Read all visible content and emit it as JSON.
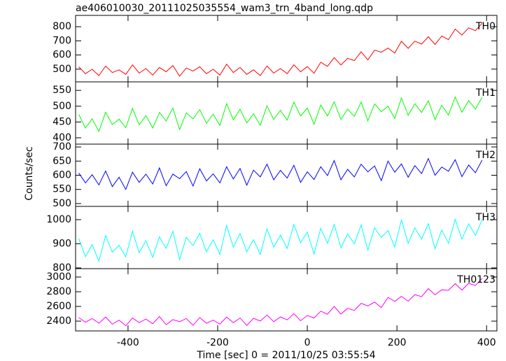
{
  "chart_data": {
    "type": "line",
    "title": "ae406010030_20111025035554_wam3_trn_4band_long.qdp",
    "xlabel": "Time [sec] 0 = 2011/10/25 03:55:54",
    "ylabel": "Counts/sec",
    "xlim": [
      -517,
      423
    ],
    "xticks": [
      -400,
      -200,
      0,
      200,
      400
    ],
    "x": [
      -510,
      -495,
      -480,
      -465,
      -450,
      -435,
      -420,
      -405,
      -390,
      -375,
      -360,
      -345,
      -330,
      -315,
      -300,
      -285,
      -270,
      -255,
      -240,
      -225,
      -210,
      -195,
      -180,
      -165,
      -150,
      -135,
      -120,
      -105,
      -90,
      -75,
      -60,
      -45,
      -30,
      -15,
      0,
      15,
      30,
      45,
      60,
      75,
      90,
      105,
      120,
      135,
      150,
      165,
      180,
      195,
      210,
      225,
      240,
      255,
      270,
      285,
      300,
      315,
      330,
      345,
      360,
      375,
      390
    ],
    "series": [
      {
        "name": "TH0",
        "color": "#ff0000",
        "ylim": [
          410,
          880
        ],
        "yticks": [
          500,
          600,
          700,
          800
        ],
        "values": [
          517,
          468,
          499,
          454,
          522,
          476,
          495,
          463,
          530,
          472,
          504,
          458,
          512,
          481,
          526,
          450,
          508,
          486,
          517,
          468,
          499,
          458,
          535,
          476,
          512,
          463,
          495,
          454,
          522,
          472,
          504,
          468,
          530,
          481,
          518,
          471,
          549,
          520,
          581,
          529,
          576,
          561,
          622,
          565,
          634,
          620,
          649,
          614,
          697,
          647,
          698,
          677,
          729,
          674,
          734,
          709,
          783,
          741,
          792,
          772,
          824
        ]
      },
      {
        "name": "TH1",
        "color": "#00ff00",
        "ylim": [
          380,
          577
        ],
        "yticks": [
          400,
          450,
          500,
          550
        ],
        "values": [
          474,
          431,
          460,
          420,
          481,
          442,
          459,
          432,
          493,
          441,
          470,
          431,
          480,
          453,
          494,
          426,
          479,
          460,
          489,
          446,
          475,
          439,
          508,
          457,
          490,
          447,
          476,
          440,
          501,
          458,
          487,
          456,
          513,
          469,
          494,
          443,
          504,
          469,
          514,
          458,
          491,
          468,
          513,
          454,
          507,
          483,
          500,
          461,
          526,
          471,
          508,
          480,
          517,
          458,
          503,
          472,
          529,
          481,
          518,
          491,
          528
        ]
      },
      {
        "name": "TH2",
        "color": "#0000ff",
        "ylim": [
          490,
          710
        ],
        "yticks": [
          500,
          550,
          600,
          650,
          700
        ],
        "values": [
          608,
          573,
          602,
          566,
          615,
          560,
          593,
          550,
          611,
          575,
          604,
          569,
          626,
          563,
          604,
          588,
          613,
          562,
          623,
          580,
          605,
          573,
          630,
          587,
          624,
          565,
          618,
          594,
          639,
          584,
          617,
          590,
          635,
          575,
          612,
          585,
          630,
          599,
          652,
          584,
          621,
          594,
          639,
          612,
          633,
          581,
          650,
          611,
          640,
          593,
          634,
          606,
          659,
          600,
          629,
          614,
          655,
          595,
          636,
          609,
          654
        ]
      },
      {
        "name": "TH3",
        "color": "#00ffff",
        "ylim": [
          797,
          1055
        ],
        "yticks": [
          800,
          900,
          1000
        ],
        "values": [
          922,
          846,
          896,
          828,
          934,
          865,
          894,
          846,
          952,
          863,
          913,
          844,
          929,
          881,
          952,
          835,
          927,
          893,
          943,
          867,
          917,
          856,
          976,
          886,
          943,
          867,
          917,
          856,
          962,
          886,
          936,
          881,
          980,
          905,
          948,
          858,
          964,
          902,
          980,
          884,
          941,
          900,
          978,
          874,
          966,
          926,
          955,
          886,
          999,
          902,
          966,
          919,
          983,
          879,
          957,
          902,
          1001,
          919,
          983,
          935,
          999
        ]
      },
      {
        "name": "TH0123",
        "color": "#ff00ff",
        "ylim": [
          2267,
          3114
        ],
        "yticks": [
          2400,
          2600,
          2800,
          3000
        ],
        "values": [
          2449,
          2386,
          2435,
          2372,
          2456,
          2358,
          2414,
          2337,
          2442,
          2379,
          2428,
          2365,
          2463,
          2351,
          2421,
          2393,
          2435,
          2344,
          2449,
          2372,
          2414,
          2358,
          2456,
          2379,
          2442,
          2342,
          2438,
          2401,
          2483,
          2393,
          2457,
          2417,
          2502,
          2405,
          2477,
          2443,
          2535,
          2494,
          2600,
          2496,
          2574,
          2545,
          2642,
          2608,
          2658,
          2585,
          2722,
          2670,
          2737,
          2671,
          2761,
          2732,
          2843,
          2758,
          2827,
          2819,
          2909,
          2824,
          2914,
          2885,
          2982
        ]
      }
    ]
  }
}
